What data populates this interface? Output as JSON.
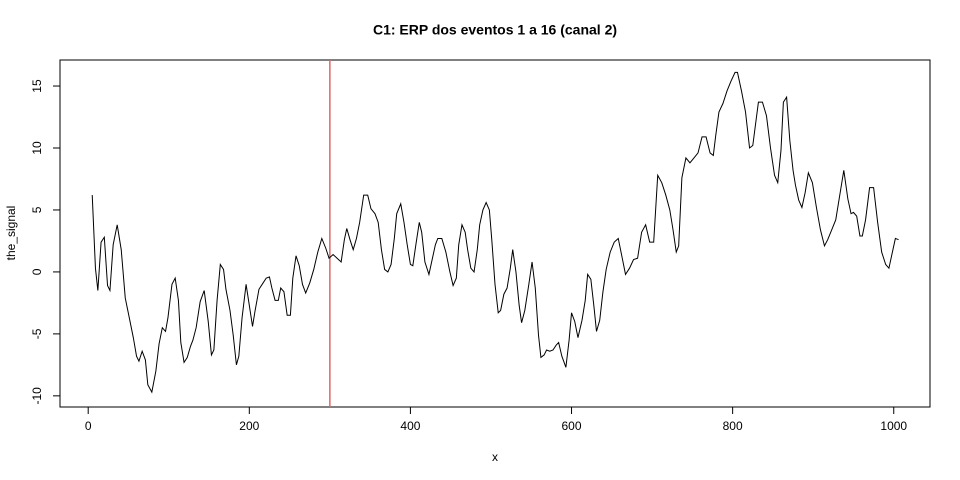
{
  "chart_data": {
    "type": "line",
    "title": "C1: ERP dos eventos 1 a 16 (canal 2)",
    "x_label": "x",
    "y_label": "the_signal",
    "x": [
      5,
      9,
      12,
      16,
      20,
      24,
      27,
      31,
      36,
      41,
      46,
      51,
      56,
      60,
      63,
      67,
      71,
      74,
      79,
      84,
      88,
      92,
      96,
      99,
      104,
      108,
      112,
      115,
      119,
      123,
      127,
      130,
      134,
      139,
      144,
      149,
      153,
      156,
      160,
      164,
      168,
      171,
      176,
      180,
      184,
      187,
      191,
      196,
      200,
      204,
      207,
      212,
      217,
      221,
      225,
      228,
      232,
      236,
      239,
      243,
      247,
      251,
      254,
      258,
      262,
      266,
      270,
      275,
      280,
      285,
      290,
      295,
      299,
      304,
      309,
      314,
      318,
      321,
      325,
      329,
      333,
      337,
      342,
      347,
      351,
      356,
      360,
      364,
      368,
      372,
      376,
      380,
      383,
      388,
      392,
      396,
      400,
      403,
      407,
      411,
      414,
      418,
      423,
      427,
      431,
      434,
      439,
      444,
      449,
      453,
      457,
      460,
      464,
      468,
      471,
      475,
      479,
      483,
      486,
      490,
      494,
      498,
      501,
      505,
      509,
      512,
      516,
      520,
      524,
      527,
      531,
      535,
      538,
      542,
      547,
      551,
      555,
      559,
      562,
      566,
      569,
      573,
      577,
      581,
      584,
      588,
      593,
      597,
      600,
      604,
      608,
      613,
      617,
      620,
      624,
      628,
      631,
      635,
      639,
      643,
      648,
      653,
      658,
      663,
      667,
      672,
      677,
      682,
      687,
      692,
      697,
      702,
      707,
      712,
      717,
      722,
      726,
      730,
      733,
      737,
      742,
      747,
      752,
      757,
      762,
      767,
      772,
      776,
      779,
      783,
      788,
      793,
      798,
      803,
      806,
      811,
      816,
      821,
      825,
      829,
      832,
      837,
      842,
      847,
      852,
      856,
      860,
      863,
      867,
      871,
      875,
      878,
      882,
      886,
      890,
      894,
      899,
      904,
      909,
      914,
      918,
      923,
      928,
      933,
      938,
      943,
      947,
      950,
      954,
      958,
      961,
      965,
      970,
      975,
      980,
      985,
      990,
      994,
      999,
      1002,
      1006
    ],
    "values": [
      6.2,
      0.3,
      -1.5,
      2.4,
      2.8,
      -1.1,
      -1.5,
      2.2,
      3.8,
      1.8,
      -2.1,
      -3.7,
      -5.3,
      -6.8,
      -7.2,
      -6.4,
      -7.1,
      -9.1,
      -9.7,
      -8.0,
      -5.8,
      -4.5,
      -4.8,
      -3.7,
      -1.0,
      -0.5,
      -2.3,
      -5.7,
      -7.3,
      -6.9,
      -6.0,
      -5.5,
      -4.5,
      -2.4,
      -1.5,
      -4.0,
      -6.7,
      -6.3,
      -2.3,
      0.6,
      0.2,
      -1.4,
      -3.1,
      -5.1,
      -7.5,
      -6.8,
      -3.7,
      -1.0,
      -2.7,
      -4.4,
      -3.2,
      -1.4,
      -0.9,
      -0.5,
      -0.4,
      -1.3,
      -2.3,
      -2.3,
      -1.3,
      -1.6,
      -3.5,
      -3.5,
      -0.5,
      1.3,
      0.5,
      -1.0,
      -1.7,
      -0.9,
      0.2,
      1.6,
      2.7,
      1.9,
      1.1,
      1.4,
      1.1,
      0.8,
      2.6,
      3.5,
      2.6,
      1.8,
      2.7,
      4.0,
      6.2,
      6.2,
      5.1,
      4.7,
      4.0,
      1.8,
      0.2,
      0.0,
      0.6,
      2.7,
      4.7,
      5.5,
      4.0,
      2.2,
      0.6,
      0.5,
      2.3,
      4.0,
      3.2,
      0.8,
      -0.2,
      1.0,
      2.2,
      2.7,
      2.7,
      1.6,
      0.0,
      -1.1,
      -0.5,
      2.2,
      3.8,
      3.2,
      1.8,
      0.3,
      0.0,
      1.8,
      3.8,
      5.0,
      5.6,
      5.0,
      2.6,
      -1.0,
      -3.3,
      -3.1,
      -1.8,
      -1.3,
      0.3,
      1.8,
      0.0,
      -2.7,
      -4.1,
      -3.1,
      -1.0,
      0.8,
      -1.3,
      -5.1,
      -6.9,
      -6.7,
      -6.3,
      -6.4,
      -6.3,
      -5.9,
      -5.7,
      -6.8,
      -7.7,
      -5.5,
      -3.3,
      -4.0,
      -5.3,
      -3.9,
      -2.3,
      -0.2,
      -0.6,
      -2.9,
      -4.8,
      -3.9,
      -1.6,
      0.2,
      1.6,
      2.4,
      2.7,
      1.1,
      -0.2,
      0.3,
      1.0,
      1.1,
      3.2,
      3.8,
      2.4,
      2.4,
      7.8,
      7.2,
      6.2,
      5.0,
      3.4,
      1.6,
      2.1,
      7.6,
      9.2,
      8.8,
      9.2,
      9.6,
      10.9,
      10.9,
      9.6,
      9.4,
      11.0,
      12.9,
      13.6,
      14.6,
      15.4,
      16.1,
      16.1,
      14.6,
      12.9,
      10.0,
      10.2,
      12.2,
      13.7,
      13.7,
      12.6,
      10.0,
      7.8,
      7.2,
      9.8,
      13.7,
      14.1,
      10.6,
      8.2,
      7.0,
      5.8,
      5.2,
      6.4,
      8.0,
      7.2,
      5.2,
      3.4,
      2.1,
      2.6,
      3.4,
      4.2,
      6.2,
      8.2,
      5.9,
      4.7,
      4.8,
      4.5,
      2.9,
      2.9,
      4.2,
      6.8,
      6.8,
      4.0,
      1.6,
      0.6,
      0.3,
      1.8,
      2.7,
      2.6
    ],
    "color": "#000000",
    "vline": {
      "x": 300,
      "color": "#e06666"
    },
    "xlim": [
      -35,
      1045
    ],
    "ylim": [
      -10.9,
      17.1
    ],
    "xticks": [
      0,
      200,
      400,
      600,
      800,
      1000
    ],
    "yticks": [
      -10,
      -5,
      0,
      5,
      10,
      15
    ]
  }
}
